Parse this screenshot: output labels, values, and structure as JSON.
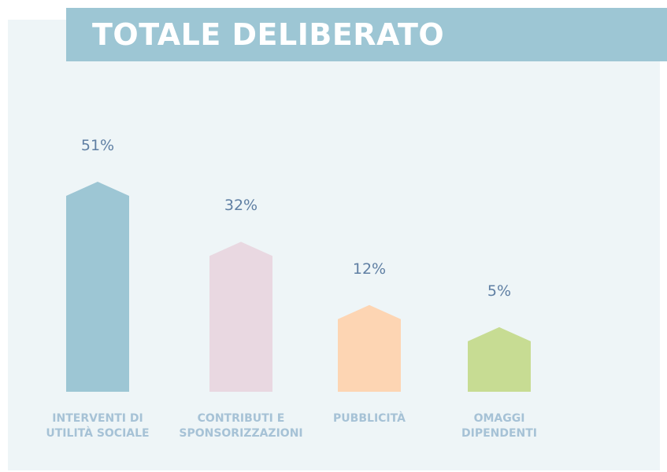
{
  "chart_data": {
    "type": "bar",
    "title": "TOTALE DELIBERATO",
    "categories": [
      "INTERVENTI DI UTILITÀ SOCIALE",
      "CONTRIBUTI E SPONSORIZZAZIONI",
      "PUBBLICITÀ",
      "OMAGGI DIPENDENTI"
    ],
    "values": [
      51,
      32,
      12,
      5
    ],
    "value_labels": [
      "51%",
      "32%",
      "12%",
      "5%"
    ],
    "colors": [
      "#9dc6d4",
      "#e9d8e1",
      "#fdd5b3",
      "#c7dc93"
    ]
  }
}
